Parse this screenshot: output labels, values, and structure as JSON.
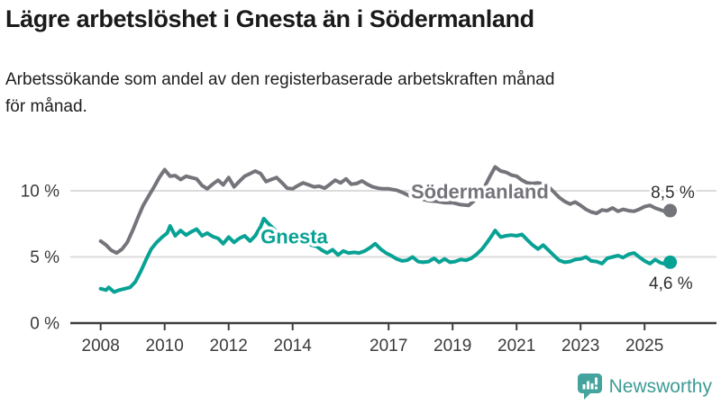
{
  "header": {
    "title": "Lägre arbetslöshet i Gnesta än i Södermanland",
    "subtitle_line1": "Arbetssökande som andel av den registerbaserade arbetskraften månad",
    "subtitle_line2": "för månad."
  },
  "chart_data": {
    "type": "line",
    "unit": "%",
    "title": "",
    "xlabel": "",
    "ylabel": "",
    "grid": "horizontal",
    "xlim": [
      2007.85,
      2026.1
    ],
    "ylim": [
      0,
      12.5
    ],
    "x_ticks": [
      2008,
      2010,
      2012,
      2014,
      2017,
      2019,
      2021,
      2023,
      2025
    ],
    "x_tick_labels": [
      "2008",
      "2010",
      "2012",
      "2014",
      "2017",
      "2019",
      "2021",
      "2023",
      "2025"
    ],
    "y_ticks": [
      0,
      5,
      10
    ],
    "y_tick_labels": [
      "0 %",
      "5 %",
      "10 %"
    ],
    "axis_color": "#3e3e3e",
    "grid_color": "#dcdcdc",
    "tick_label_color": "#3a3a3a",
    "value_label_color": "#2e2e2e",
    "series": [
      {
        "name": "Södermanland",
        "color": "#74747b",
        "end_label": "8,5 %",
        "end_value": 8.5,
        "label_anchor": [
          2019.85,
          9.95
        ],
        "end_label_anchor": [
          2025.88,
          9.93
        ],
        "points": [
          [
            2008.0,
            6.2
          ],
          [
            2008.17,
            5.9
          ],
          [
            2008.33,
            5.5
          ],
          [
            2008.5,
            5.3
          ],
          [
            2008.67,
            5.6
          ],
          [
            2008.83,
            6.1
          ],
          [
            2009.0,
            7.0
          ],
          [
            2009.17,
            8.0
          ],
          [
            2009.33,
            8.9
          ],
          [
            2009.5,
            9.6
          ],
          [
            2009.67,
            10.3
          ],
          [
            2009.83,
            11.0
          ],
          [
            2010.0,
            11.6
          ],
          [
            2010.17,
            11.1
          ],
          [
            2010.33,
            11.15
          ],
          [
            2010.5,
            10.85
          ],
          [
            2010.67,
            11.1
          ],
          [
            2010.83,
            11.0
          ],
          [
            2011.0,
            10.9
          ],
          [
            2011.17,
            10.4
          ],
          [
            2011.33,
            10.15
          ],
          [
            2011.5,
            10.5
          ],
          [
            2011.67,
            10.8
          ],
          [
            2011.83,
            10.45
          ],
          [
            2012.0,
            11.0
          ],
          [
            2012.17,
            10.3
          ],
          [
            2012.33,
            10.7
          ],
          [
            2012.5,
            11.1
          ],
          [
            2012.67,
            11.3
          ],
          [
            2012.83,
            11.5
          ],
          [
            2013.0,
            11.3
          ],
          [
            2013.17,
            10.7
          ],
          [
            2013.33,
            10.85
          ],
          [
            2013.5,
            11.0
          ],
          [
            2013.67,
            10.6
          ],
          [
            2013.83,
            10.2
          ],
          [
            2014.0,
            10.15
          ],
          [
            2014.17,
            10.4
          ],
          [
            2014.33,
            10.6
          ],
          [
            2014.5,
            10.45
          ],
          [
            2014.67,
            10.3
          ],
          [
            2014.83,
            10.35
          ],
          [
            2015.0,
            10.2
          ],
          [
            2015.17,
            10.5
          ],
          [
            2015.33,
            10.8
          ],
          [
            2015.5,
            10.6
          ],
          [
            2015.67,
            10.9
          ],
          [
            2015.83,
            10.5
          ],
          [
            2016.0,
            10.55
          ],
          [
            2016.17,
            10.75
          ],
          [
            2016.33,
            10.5
          ],
          [
            2016.5,
            10.3
          ],
          [
            2016.67,
            10.2
          ],
          [
            2016.83,
            10.15
          ],
          [
            2017.0,
            10.15
          ],
          [
            2017.25,
            10.05
          ],
          [
            2017.5,
            9.8
          ],
          [
            2017.75,
            9.5
          ],
          [
            2018.0,
            9.4
          ],
          [
            2018.25,
            9.25
          ],
          [
            2018.5,
            9.2
          ],
          [
            2018.75,
            9.1
          ],
          [
            2019.0,
            9.1
          ],
          [
            2019.25,
            8.95
          ],
          [
            2019.5,
            8.9
          ],
          [
            2019.75,
            9.4
          ],
          [
            2020.0,
            10.3
          ],
          [
            2020.17,
            11.1
          ],
          [
            2020.33,
            11.8
          ],
          [
            2020.5,
            11.5
          ],
          [
            2020.67,
            11.4
          ],
          [
            2020.83,
            11.2
          ],
          [
            2021.0,
            11.1
          ],
          [
            2021.17,
            10.8
          ],
          [
            2021.33,
            10.6
          ],
          [
            2021.5,
            10.55
          ],
          [
            2021.67,
            10.6
          ],
          [
            2021.83,
            10.5
          ],
          [
            2022.0,
            10.3
          ],
          [
            2022.17,
            9.9
          ],
          [
            2022.33,
            9.5
          ],
          [
            2022.5,
            9.2
          ],
          [
            2022.67,
            9.0
          ],
          [
            2022.83,
            9.15
          ],
          [
            2023.0,
            8.9
          ],
          [
            2023.17,
            8.6
          ],
          [
            2023.33,
            8.4
          ],
          [
            2023.5,
            8.3
          ],
          [
            2023.67,
            8.55
          ],
          [
            2023.83,
            8.5
          ],
          [
            2024.0,
            8.7
          ],
          [
            2024.17,
            8.45
          ],
          [
            2024.33,
            8.6
          ],
          [
            2024.5,
            8.5
          ],
          [
            2024.67,
            8.45
          ],
          [
            2024.83,
            8.6
          ],
          [
            2025.0,
            8.8
          ],
          [
            2025.17,
            8.9
          ],
          [
            2025.33,
            8.7
          ],
          [
            2025.5,
            8.55
          ],
          [
            2025.67,
            8.4
          ],
          [
            2025.8,
            8.5
          ]
        ]
      },
      {
        "name": "Gnesta",
        "color": "#08a295",
        "end_label": "4,6 %",
        "end_value": 4.6,
        "label_anchor": [
          2014.05,
          6.55
        ],
        "end_label_anchor": [
          2025.82,
          3.05
        ],
        "points": [
          [
            2008.0,
            2.6
          ],
          [
            2008.17,
            2.5
          ],
          [
            2008.25,
            2.7
          ],
          [
            2008.42,
            2.35
          ],
          [
            2008.58,
            2.5
          ],
          [
            2008.75,
            2.6
          ],
          [
            2008.92,
            2.7
          ],
          [
            2009.08,
            3.1
          ],
          [
            2009.25,
            3.9
          ],
          [
            2009.42,
            4.8
          ],
          [
            2009.58,
            5.6
          ],
          [
            2009.75,
            6.1
          ],
          [
            2009.92,
            6.5
          ],
          [
            2010.08,
            6.8
          ],
          [
            2010.17,
            7.35
          ],
          [
            2010.33,
            6.6
          ],
          [
            2010.5,
            7.0
          ],
          [
            2010.67,
            6.65
          ],
          [
            2010.83,
            6.9
          ],
          [
            2011.0,
            7.1
          ],
          [
            2011.17,
            6.6
          ],
          [
            2011.33,
            6.8
          ],
          [
            2011.5,
            6.55
          ],
          [
            2011.67,
            6.4
          ],
          [
            2011.83,
            6.0
          ],
          [
            2012.0,
            6.5
          ],
          [
            2012.17,
            6.1
          ],
          [
            2012.33,
            6.4
          ],
          [
            2012.5,
            6.6
          ],
          [
            2012.67,
            6.2
          ],
          [
            2012.83,
            6.6
          ],
          [
            2013.0,
            7.3
          ],
          [
            2013.1,
            7.9
          ],
          [
            2013.25,
            7.5
          ],
          [
            2013.42,
            7.1
          ],
          [
            2013.58,
            6.7
          ],
          [
            2013.75,
            6.4
          ],
          [
            2013.92,
            6.2
          ],
          [
            2014.08,
            6.4
          ],
          [
            2014.25,
            6.1
          ],
          [
            2014.42,
            6.3
          ],
          [
            2014.58,
            5.9
          ],
          [
            2014.75,
            5.8
          ],
          [
            2014.92,
            5.5
          ],
          [
            2015.08,
            5.3
          ],
          [
            2015.25,
            5.55
          ],
          [
            2015.42,
            5.15
          ],
          [
            2015.58,
            5.45
          ],
          [
            2015.75,
            5.3
          ],
          [
            2015.92,
            5.35
          ],
          [
            2016.08,
            5.3
          ],
          [
            2016.25,
            5.45
          ],
          [
            2016.42,
            5.7
          ],
          [
            2016.58,
            6.0
          ],
          [
            2016.75,
            5.6
          ],
          [
            2016.92,
            5.3
          ],
          [
            2017.08,
            5.1
          ],
          [
            2017.25,
            4.85
          ],
          [
            2017.42,
            4.7
          ],
          [
            2017.58,
            4.75
          ],
          [
            2017.75,
            5.0
          ],
          [
            2017.92,
            4.65
          ],
          [
            2018.08,
            4.6
          ],
          [
            2018.25,
            4.65
          ],
          [
            2018.42,
            4.9
          ],
          [
            2018.58,
            4.6
          ],
          [
            2018.75,
            4.85
          ],
          [
            2018.92,
            4.6
          ],
          [
            2019.08,
            4.65
          ],
          [
            2019.25,
            4.8
          ],
          [
            2019.42,
            4.75
          ],
          [
            2019.58,
            4.9
          ],
          [
            2019.75,
            5.2
          ],
          [
            2019.92,
            5.6
          ],
          [
            2020.08,
            6.1
          ],
          [
            2020.25,
            6.7
          ],
          [
            2020.33,
            7.0
          ],
          [
            2020.5,
            6.5
          ],
          [
            2020.67,
            6.6
          ],
          [
            2020.83,
            6.65
          ],
          [
            2021.0,
            6.6
          ],
          [
            2021.17,
            6.7
          ],
          [
            2021.33,
            6.3
          ],
          [
            2021.5,
            5.9
          ],
          [
            2021.67,
            5.6
          ],
          [
            2021.83,
            5.9
          ],
          [
            2022.0,
            5.5
          ],
          [
            2022.17,
            5.1
          ],
          [
            2022.33,
            4.75
          ],
          [
            2022.5,
            4.6
          ],
          [
            2022.67,
            4.65
          ],
          [
            2022.83,
            4.8
          ],
          [
            2023.0,
            4.85
          ],
          [
            2023.17,
            5.0
          ],
          [
            2023.33,
            4.7
          ],
          [
            2023.5,
            4.65
          ],
          [
            2023.67,
            4.5
          ],
          [
            2023.83,
            4.9
          ],
          [
            2024.0,
            5.0
          ],
          [
            2024.17,
            5.1
          ],
          [
            2024.33,
            4.95
          ],
          [
            2024.5,
            5.2
          ],
          [
            2024.67,
            5.3
          ],
          [
            2024.83,
            5.0
          ],
          [
            2025.0,
            4.7
          ],
          [
            2025.17,
            4.5
          ],
          [
            2025.33,
            4.8
          ],
          [
            2025.5,
            4.55
          ],
          [
            2025.67,
            4.45
          ],
          [
            2025.8,
            4.6
          ]
        ]
      }
    ]
  },
  "footer": {
    "brand": "Newsworthy",
    "brand_color": "#3d9b95",
    "icon_color": "#44a39c",
    "icon": "newsworthy-speech-bubble-chart-icon"
  }
}
